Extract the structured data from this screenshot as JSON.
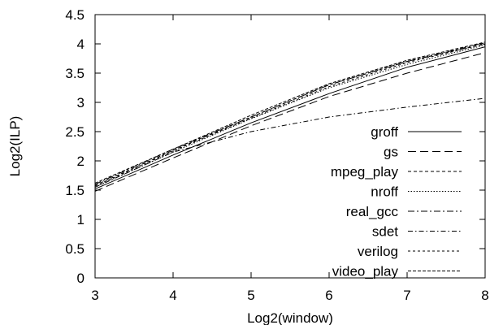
{
  "chart_data": {
    "type": "line",
    "title": "",
    "xlabel": "Log2(window)",
    "ylabel": "Log2(ILP)",
    "xlim": [
      3,
      8
    ],
    "ylim": [
      0,
      4.5
    ],
    "xticks": [
      "3",
      "4",
      "5",
      "6",
      "7",
      "8"
    ],
    "yticks": [
      "0",
      "0.5",
      "1",
      "1.5",
      "2",
      "2.5",
      "3",
      "3.5",
      "4",
      "4.5"
    ],
    "grid": false,
    "legend_position": "right-center",
    "x": [
      3,
      4,
      5,
      6,
      7,
      8
    ],
    "series": [
      {
        "name": "groff",
        "values": [
          1.52,
          2.1,
          2.65,
          3.15,
          3.6,
          3.95
        ],
        "dash": ""
      },
      {
        "name": "gs",
        "values": [
          1.48,
          2.05,
          2.6,
          3.1,
          3.5,
          3.85
        ],
        "dash": "10,5"
      },
      {
        "name": "mpeg_play",
        "values": [
          1.58,
          2.18,
          2.75,
          3.3,
          3.7,
          4.0
        ],
        "dash": "4,3"
      },
      {
        "name": "nroff",
        "values": [
          1.55,
          2.15,
          2.72,
          3.25,
          3.65,
          3.98
        ],
        "dash": "1.5,2"
      },
      {
        "name": "real_gcc",
        "values": [
          1.6,
          2.2,
          2.75,
          3.3,
          3.7,
          4.02
        ],
        "dash": "8,3,2,3"
      },
      {
        "name": "sdet",
        "values": [
          1.55,
          2.15,
          2.5,
          2.75,
          2.92,
          3.07
        ],
        "dash": "6,3,1.5,3"
      },
      {
        "name": "verilog",
        "values": [
          1.57,
          2.17,
          2.73,
          3.27,
          3.68,
          4.0
        ],
        "dash": "3,3"
      },
      {
        "name": "video_play",
        "values": [
          1.62,
          2.2,
          2.78,
          3.32,
          3.72,
          4.03
        ],
        "dash": "4,2"
      }
    ]
  }
}
